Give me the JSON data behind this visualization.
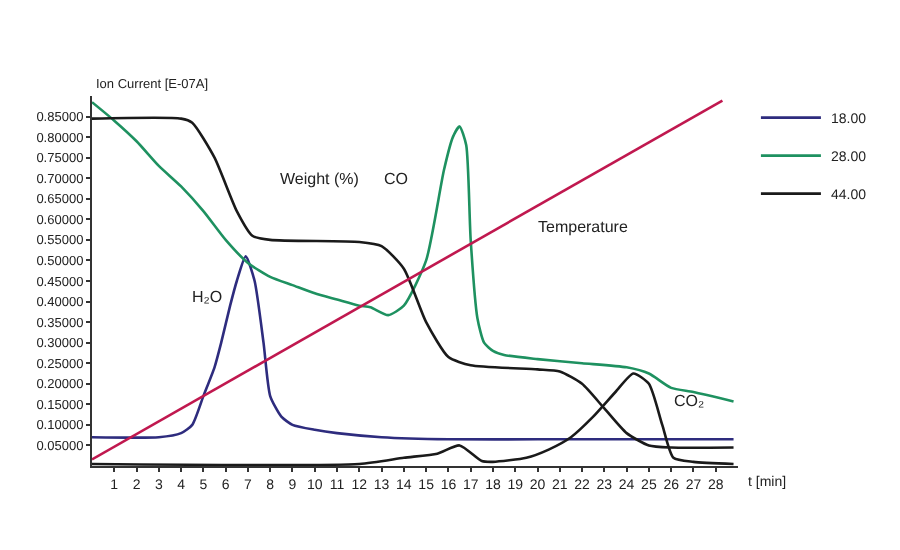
{
  "chart_data": {
    "type": "line",
    "xlabel": "t [min]",
    "ylabel": "Ion Current [E-07A]",
    "xlim": [
      0,
      29
    ],
    "xticks": [
      1,
      2,
      3,
      4,
      5,
      6,
      7,
      8,
      9,
      10,
      11,
      12,
      13,
      14,
      15,
      16,
      17,
      18,
      19,
      20,
      21,
      22,
      23,
      24,
      25,
      26,
      27,
      28
    ],
    "ylim": [
      0,
      0.9
    ],
    "yticks": [
      {
        "value": 0.05,
        "label": "0.05000"
      },
      {
        "value": 0.1,
        "label": "0.10000"
      },
      {
        "value": 0.15,
        "label": "0.15000"
      },
      {
        "value": 0.2,
        "label": "0.20000"
      },
      {
        "value": 0.25,
        "label": "0.25000"
      },
      {
        "value": 0.3,
        "label": "0.30000"
      },
      {
        "value": 0.35,
        "label": "0.35000"
      },
      {
        "value": 0.4,
        "label": "0.40000"
      },
      {
        "value": 0.45,
        "label": "0.45000"
      },
      {
        "value": 0.5,
        "label": "0.50000"
      },
      {
        "value": 0.55,
        "label": "0.55000"
      },
      {
        "value": 0.6,
        "label": "0.60000"
      },
      {
        "value": 0.65,
        "label": "0.65000"
      },
      {
        "value": 0.7,
        "label": "0.70000"
      },
      {
        "value": 0.75,
        "label": "0.75000"
      },
      {
        "value": 0.8,
        "label": "0.80000"
      },
      {
        "value": 0.85,
        "label": "0.85000"
      }
    ],
    "grid": false,
    "legend": "top right",
    "marker": "none",
    "line_style": "solid",
    "series": [
      {
        "name": "18.00",
        "color": "#2e2c7e",
        "x": [
          0,
          3,
          4,
          4.5,
          5,
          5.5,
          5.8,
          6.2,
          6.5,
          6.9,
          7.3,
          7.7,
          8,
          8.5,
          9,
          10,
          11,
          13,
          16,
          20,
          28.8
        ],
        "values": [
          0.07,
          0.07,
          0.08,
          0.1,
          0.17,
          0.24,
          0.3,
          0.39,
          0.45,
          0.51,
          0.45,
          0.3,
          0.17,
          0.12,
          0.1,
          0.088,
          0.08,
          0.07,
          0.065,
          0.065,
          0.065
        ]
      },
      {
        "name": "28.00",
        "color": "#1e9160",
        "x": [
          0,
          1,
          2,
          3,
          4,
          5,
          6,
          7,
          8,
          9,
          10,
          11,
          12,
          12.5,
          13.3,
          14,
          15,
          15.8,
          16.2,
          16.5,
          16.8,
          17,
          17.3,
          17.6,
          18,
          18.5,
          20,
          22,
          24,
          25,
          26,
          27,
          28.8
        ],
        "values": [
          0.885,
          0.84,
          0.79,
          0.73,
          0.68,
          0.62,
          0.55,
          0.494,
          0.46,
          0.44,
          0.42,
          0.405,
          0.39,
          0.386,
          0.367,
          0.39,
          0.5,
          0.72,
          0.8,
          0.826,
          0.78,
          0.55,
          0.36,
          0.3,
          0.28,
          0.27,
          0.26,
          0.25,
          0.24,
          0.225,
          0.19,
          0.18,
          0.157
        ]
      },
      {
        "name": "44.00",
        "color": "#1a1a1a",
        "x": [
          0,
          12,
          14,
          15.5,
          16.5,
          17.5,
          18,
          19.5,
          20.5,
          21.5,
          22.5,
          23.5,
          24.3,
          25,
          25.6,
          26.1,
          27,
          28.8
        ],
        "values": [
          0.005,
          0.005,
          0.02,
          0.03,
          0.05,
          0.012,
          0.01,
          0.02,
          0.04,
          0.07,
          0.12,
          0.18,
          0.225,
          0.2,
          0.1,
          0.02,
          0.01,
          0.005
        ]
      },
      {
        "color": "#1a1a1a",
        "x": [
          0,
          4,
          4.5,
          5.5,
          6.5,
          7.2,
          8,
          12,
          13,
          14,
          15,
          16,
          17,
          20,
          21,
          22,
          23,
          24,
          25,
          26,
          28.8
        ],
        "values": [
          0.845,
          0.845,
          0.835,
          0.75,
          0.62,
          0.56,
          0.55,
          0.545,
          0.535,
          0.48,
          0.35,
          0.265,
          0.245,
          0.235,
          0.23,
          0.2,
          0.14,
          0.08,
          0.05,
          0.045,
          0.045
        ]
      },
      {
        "color": "#c0184f",
        "x": [
          0,
          28.3
        ],
        "values": [
          0.016,
          0.889
        ]
      }
    ],
    "annotations": [
      "Weight (%)",
      "CO",
      "H₂O",
      "Temperature",
      "CO₂"
    ]
  }
}
